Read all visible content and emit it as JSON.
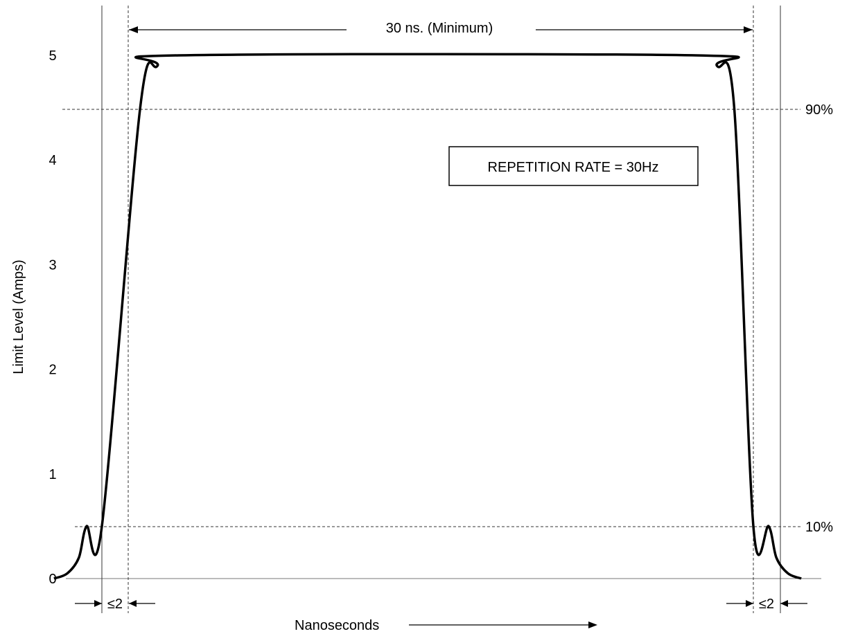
{
  "chart_data": {
    "type": "line",
    "title": "",
    "xlabel": "Nanoseconds",
    "ylabel": "Limit Level (Amps)",
    "ylim": [
      0,
      5
    ],
    "y_ticks": [
      "0",
      "1",
      "2",
      "3",
      "4",
      "5"
    ],
    "grid": false,
    "series": [
      {
        "x": [
          -2.5,
          -1.8,
          -1.2,
          -0.8,
          0,
          2,
          2.9,
          4,
          31,
          32.1,
          33,
          34,
          34.8,
          35.2,
          35.8,
          36.5
        ],
        "y": [
          0,
          0.05,
          0.2,
          0.5,
          0.5,
          4.5,
          4.9,
          5,
          5,
          4.9,
          4.5,
          0.5,
          0.5,
          0.2,
          0.05,
          0
        ]
      }
    ],
    "annotations": {
      "pulse_width_label": "30 ns.  (Minimum)",
      "repetition_label": "REPETITION RATE = 30Hz",
      "level_90": "90%",
      "level_10": "10%",
      "rise_label": "≤2",
      "fall_label": "≤2"
    }
  }
}
